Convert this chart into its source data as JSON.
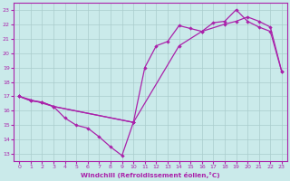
{
  "xlabel": "Windchill (Refroidissement éolien,°C)",
  "xlim": [
    -0.5,
    23.5
  ],
  "ylim": [
    12.5,
    23.5
  ],
  "yticks": [
    13,
    14,
    15,
    16,
    17,
    18,
    19,
    20,
    21,
    22,
    23
  ],
  "xticks": [
    0,
    1,
    2,
    3,
    4,
    5,
    6,
    7,
    8,
    9,
    10,
    11,
    12,
    13,
    14,
    15,
    16,
    17,
    18,
    19,
    20,
    21,
    22,
    23
  ],
  "bg_color": "#caeaea",
  "line_color": "#aa22aa",
  "grid_color": "#aacccc",
  "line1_x": [
    0,
    1,
    2,
    3,
    10,
    11,
    12,
    13,
    14,
    15,
    16,
    17,
    18,
    19,
    20,
    21,
    22,
    23
  ],
  "line1_y": [
    17.0,
    16.7,
    16.6,
    16.3,
    15.2,
    19.0,
    20.5,
    20.8,
    21.9,
    21.7,
    21.5,
    22.1,
    22.2,
    23.0,
    22.2,
    21.8,
    21.5,
    18.7
  ],
  "line2_x": [
    0,
    1,
    2,
    3,
    4,
    5,
    6,
    7,
    8,
    9,
    10
  ],
  "line2_y": [
    17.0,
    16.7,
    16.6,
    16.3,
    15.5,
    15.0,
    14.8,
    14.2,
    13.5,
    12.9,
    15.2
  ],
  "line3_x": [
    0,
    3,
    10,
    14,
    16,
    18,
    19,
    20,
    21,
    22,
    23
  ],
  "line3_y": [
    17.0,
    16.3,
    15.2,
    20.5,
    21.5,
    22.0,
    22.2,
    22.5,
    22.2,
    21.8,
    18.7
  ]
}
